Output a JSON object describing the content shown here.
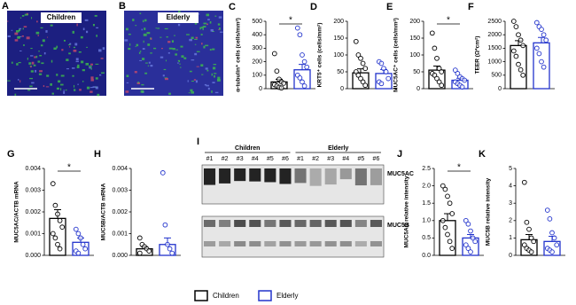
{
  "legend": {
    "items": [
      {
        "name": "Children",
        "color": "#000000"
      },
      {
        "name": "Elderly",
        "color": "#2233cc"
      }
    ]
  },
  "images": [
    {
      "panel": "A",
      "label": "Children"
    },
    {
      "panel": "B",
      "label": "Elderly"
    }
  ],
  "blot": {
    "panel": "I",
    "groups": [
      {
        "name": "Children",
        "lanes": [
          "#1",
          "#2",
          "#3",
          "#4",
          "#5",
          "#6"
        ]
      },
      {
        "name": "Elderly",
        "lanes": [
          "#1",
          "#2",
          "#3",
          "#4",
          "#5",
          "#6"
        ]
      }
    ],
    "bands": [
      "MUC5AC",
      "MUC5B"
    ]
  },
  "chart_data": [
    {
      "type": "bar",
      "panel": "C",
      "ylabel": "α-tubulin⁺ cells (cells/mm²)",
      "ylim": [
        0,
        500
      ],
      "yticks": [
        0,
        100,
        200,
        300,
        400,
        500
      ],
      "significance": "*",
      "groups": [
        {
          "mean": 50,
          "error": 20,
          "points": [
            260,
            130,
            70,
            50,
            40,
            30,
            20,
            10,
            5
          ]
        },
        {
          "mean": 140,
          "error": 40,
          "points": [
            450,
            400,
            250,
            200,
            160,
            100,
            80,
            50,
            20
          ]
        }
      ]
    },
    {
      "type": "bar",
      "panel": "D",
      "ylabel": "KRT5⁺ cells (cells/mm²)",
      "ylim": [
        0,
        200
      ],
      "yticks": [
        0,
        50,
        100,
        150,
        200
      ],
      "groups": [
        {
          "mean": 47,
          "error": 12,
          "points": [
            140,
            100,
            90,
            75,
            60,
            50,
            40,
            30,
            20,
            10
          ]
        },
        {
          "mean": 45,
          "error": 12,
          "points": [
            80,
            75,
            60,
            50,
            30,
            20,
            15
          ]
        }
      ]
    },
    {
      "type": "bar",
      "panel": "E",
      "ylabel": "MUC5AC⁺ cells (cells/mm²)",
      "ylim": [
        0,
        200
      ],
      "yticks": [
        0,
        50,
        100,
        150,
        200
      ],
      "significance": "*",
      "groups": [
        {
          "mean": 55,
          "error": 12,
          "points": [
            165,
            120,
            90,
            60,
            50,
            45,
            40,
            30,
            20,
            10
          ]
        },
        {
          "mean": 25,
          "error": 6,
          "points": [
            55,
            45,
            35,
            30,
            25,
            20,
            15,
            10,
            5
          ]
        }
      ]
    },
    {
      "type": "bar",
      "panel": "F",
      "ylabel": "TEER (Ω*cm²)",
      "ylim": [
        0,
        2500
      ],
      "yticks": [
        0,
        500,
        1000,
        1500,
        2000,
        2500
      ],
      "groups": [
        {
          "mean": 1600,
          "error": 180,
          "points": [
            2500,
            2300,
            2000,
            1800,
            1600,
            1400,
            1200,
            900,
            700,
            500
          ]
        },
        {
          "mean": 1700,
          "error": 200,
          "points": [
            2450,
            2300,
            2200,
            2000,
            1800,
            1500,
            1300,
            1000,
            800
          ]
        }
      ]
    },
    {
      "type": "bar",
      "panel": "G",
      "ylabel": "MUC5AC/ACTB mRNA",
      "ylim": [
        0,
        0.004
      ],
      "yticks": [
        {
          "value": 0,
          "label": "0.000"
        },
        {
          "value": 0.001,
          "label": "0.001"
        },
        {
          "value": 0.002,
          "label": "0.002"
        },
        {
          "value": 0.003,
          "label": "0.003"
        },
        {
          "value": 0.004,
          "label": "0.004"
        }
      ],
      "significance": "*",
      "groups": [
        {
          "mean": 0.0017,
          "error": 0.0004,
          "points": [
            0.0033,
            0.0023,
            0.0019,
            0.0016,
            0.0013,
            0.001,
            0.0008,
            0.0005,
            0.0003
          ]
        },
        {
          "mean": 0.0006,
          "error": 0.0002,
          "points": [
            0.0012,
            0.001,
            0.0008,
            0.0005,
            0.0003,
            0.0002,
            0.0001
          ]
        }
      ]
    },
    {
      "type": "bar",
      "panel": "H",
      "ylabel": "MUC5B/ACTB mRNA",
      "ylim": [
        0,
        0.004
      ],
      "yticks": [
        {
          "value": 0,
          "label": "0.000"
        },
        {
          "value": 0.001,
          "label": "0.001"
        },
        {
          "value": 0.002,
          "label": "0.002"
        },
        {
          "value": 0.003,
          "label": "0.003"
        },
        {
          "value": 0.004,
          "label": "0.004"
        }
      ],
      "groups": [
        {
          "mean": 0.0003,
          "error": 0.0001,
          "points": [
            0.0008,
            0.0005,
            0.0004,
            0.0003,
            0.0002,
            0.0001
          ]
        },
        {
          "mean": 0.0005,
          "error": 0.0003,
          "points": [
            0.0038,
            0.0014,
            0.0005,
            0.0003,
            0.0001
          ]
        }
      ]
    },
    {
      "type": "bar",
      "panel": "J",
      "ylabel": "MUC5AC relative intensity",
      "ylim": [
        0,
        2.5
      ],
      "yticks": [
        {
          "value": 0,
          "label": "0.0"
        },
        {
          "value": 0.5,
          "label": "0.5"
        },
        {
          "value": 1,
          "label": "1.0"
        },
        {
          "value": 1.5,
          "label": "1.5"
        },
        {
          "value": 2,
          "label": "2.0"
        },
        {
          "value": 2.5,
          "label": "2.5"
        }
      ],
      "significance": "*",
      "groups": [
        {
          "mean": 1.0,
          "error": 0.2,
          "points": [
            2.0,
            1.9,
            1.7,
            1.5,
            1.2,
            1.0,
            0.8,
            0.6,
            0.4,
            0.2
          ]
        },
        {
          "mean": 0.5,
          "error": 0.1,
          "points": [
            1.0,
            0.9,
            0.7,
            0.5,
            0.4,
            0.3,
            0.2,
            0.1
          ]
        }
      ]
    },
    {
      "type": "bar",
      "panel": "K",
      "ylabel": "MUC5B relative intensity",
      "ylim": [
        0,
        5
      ],
      "yticks": [
        0,
        1,
        2,
        3,
        4,
        5
      ],
      "groups": [
        {
          "mean": 0.9,
          "error": 0.3,
          "points": [
            4.2,
            1.9,
            1.5,
            1.0,
            0.8,
            0.6,
            0.4,
            0.3,
            0.2
          ]
        },
        {
          "mean": 0.8,
          "error": 0.3,
          "points": [
            2.6,
            2.1,
            1.3,
            1.0,
            0.6,
            0.4,
            0.3,
            0.2
          ]
        }
      ]
    }
  ]
}
